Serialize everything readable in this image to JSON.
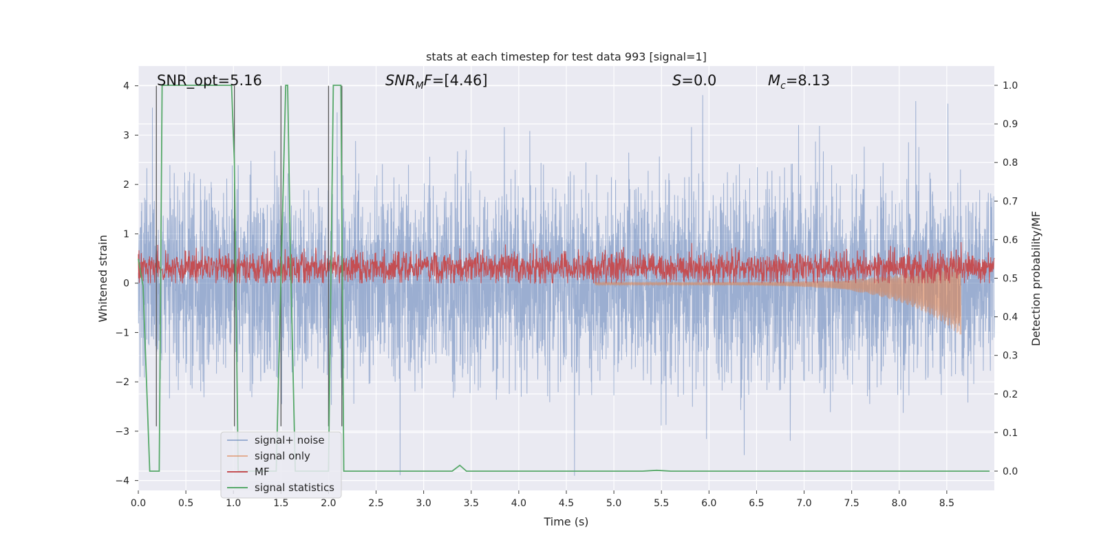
{
  "chart_data": {
    "type": "line",
    "title": "stats at each timestep for test data 993 [signal=1]",
    "xlabel": "Time (s)",
    "ylabel": "Whitened strain",
    "ylabel_right": "Detection probability/MF",
    "xlim": [
      0.0,
      9.0
    ],
    "ylim": [
      -4.2,
      4.4
    ],
    "ylim_right": [
      -0.05,
      1.05
    ],
    "x_ticks": [
      "0.0",
      "0.5",
      "1.0",
      "1.5",
      "2.0",
      "2.5",
      "3.0",
      "3.5",
      "4.0",
      "4.5",
      "5.0",
      "5.5",
      "6.0",
      "6.5",
      "7.0",
      "7.5",
      "8.0",
      "8.5"
    ],
    "y_ticks": [
      "4",
      "3",
      "2",
      "1",
      "0",
      "−1",
      "−2",
      "−3",
      "−4"
    ],
    "y_ticks_right": [
      "1.0",
      "0.9",
      "0.8",
      "0.7",
      "0.6",
      "0.5",
      "0.4",
      "0.3",
      "0.2",
      "0.1",
      "0.0"
    ],
    "grid": true,
    "legend_placement": "lower-left",
    "annotations": [
      {
        "text": "SNR_opt=5.16",
        "x": 0.2
      },
      {
        "text": "=[4.46]",
        "label_main": "SNR",
        "label_sub": "M",
        "label_tail": "F",
        "x": 2.6
      },
      {
        "text": "=0.0",
        "label_main": "S",
        "x": 5.6
      },
      {
        "text": "=8.13",
        "label_main": "M",
        "label_sub": "c",
        "x": 6.6
      }
    ],
    "series": [
      {
        "name": "signal+ noise",
        "color": "#4c72b0",
        "axis": "left",
        "amplitude": 2.6
      },
      {
        "name": "signal only",
        "color": "#dd8452",
        "axis": "left",
        "chirp_start": 4.8,
        "chirp_end": 8.65,
        "peak_amplitude": 0.8
      },
      {
        "name": "MF",
        "color": "#c44e52",
        "axis": "left",
        "baseline": 0.3,
        "range": [
          0.0,
          0.9
        ]
      },
      {
        "name": "signal statistics",
        "color": "#55a868",
        "axis": "right",
        "x": [
          0.0,
          0.05,
          0.12,
          0.18,
          0.22,
          0.25,
          0.3,
          0.5,
          0.75,
          0.98,
          1.01,
          1.05,
          1.2,
          1.45,
          1.5,
          1.55,
          1.57,
          1.6,
          1.65,
          1.95,
          2.0,
          2.05,
          2.1,
          2.13,
          2.16,
          2.2,
          3.3,
          3.38,
          3.45,
          3.6,
          5.3,
          5.45,
          5.6,
          8.65,
          8.95
        ],
        "y": [
          0.55,
          0.48,
          0.0,
          0.0,
          0.0,
          1.0,
          1.0,
          1.0,
          1.0,
          1.0,
          0.8,
          0.0,
          0.0,
          0.0,
          0.5,
          1.0,
          1.0,
          0.55,
          0.0,
          0.0,
          0.0,
          1.0,
          1.0,
          1.0,
          0.0,
          0.0,
          0.0,
          0.015,
          0.0,
          0.0,
          0.0,
          0.002,
          0.0,
          0.0,
          0.0
        ]
      }
    ],
    "vertical_lines": [
      {
        "x": 0.19,
        "color": "#555555"
      },
      {
        "x": 1.01,
        "color": "#555555"
      },
      {
        "x": 1.5,
        "color": "#555555"
      },
      {
        "x": 2.0,
        "color": "#555555"
      },
      {
        "x": 2.14,
        "color": "#555555"
      }
    ]
  }
}
